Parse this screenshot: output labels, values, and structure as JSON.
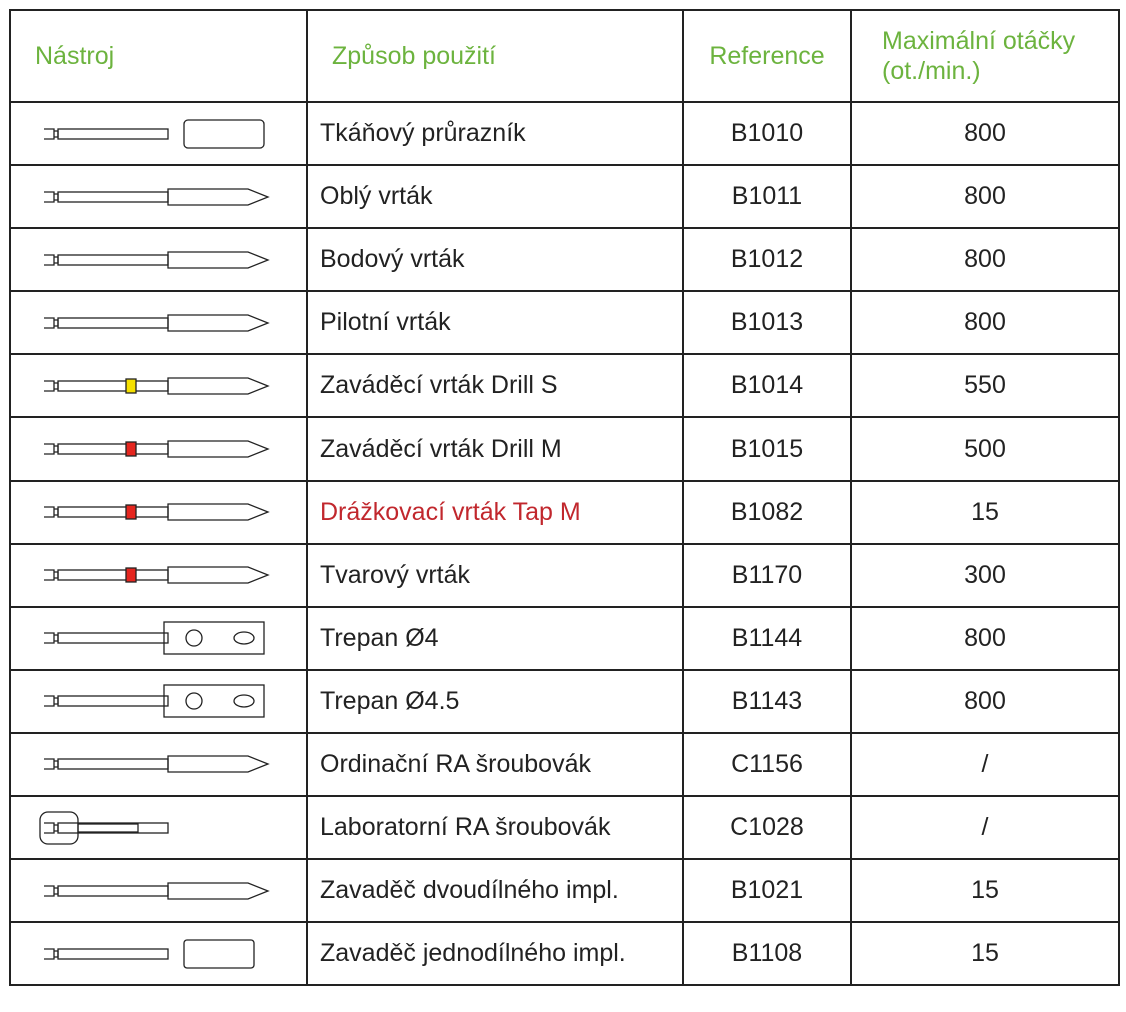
{
  "table": {
    "header": [
      "Nástroj",
      "Způsob použití",
      "Reference",
      "Maximální otáčky (ot./min.)"
    ],
    "header_color": "#6cb33e",
    "rows": [
      {
        "use": "Tkáňový průrazník",
        "reference": "B1010",
        "max_rpm": 800
      },
      {
        "use": "Oblý vrták",
        "reference": "B1011",
        "max_rpm": 800
      },
      {
        "use": "Bodový vrták",
        "reference": "B1012",
        "max_rpm": 800
      },
      {
        "use": "Pilotní vrták",
        "reference": "B1013",
        "max_rpm": 800
      },
      {
        "use": "Zaváděcí vrták Drill S",
        "reference": "B1014",
        "max_rpm": 550
      },
      {
        "use": "Zaváděcí vrták Drill M",
        "reference": "B1015",
        "max_rpm": 500
      },
      {
        "use": "Drážkovací vrták Tap M",
        "reference": "B1082",
        "max_rpm": 15,
        "color": "#c1272d"
      },
      {
        "use": "Tvarový vrták",
        "reference": "B1170",
        "max_rpm": 300
      },
      {
        "use": "Trepan Ø4",
        "reference": "B1144",
        "max_rpm": 800
      },
      {
        "use": "Trepan  Ø4.5",
        "reference": "B1143",
        "max_rpm": 800
      },
      {
        "use": "Ordinační RA šroubovák",
        "reference": "C1156",
        "max_rpm": "/"
      },
      {
        "use": "Laboratorní RA šroubovák",
        "reference": "C1028",
        "max_rpm": "/"
      },
      {
        "use": "Zavaděč dvoudílného impl.",
        "reference": "B1021",
        "max_rpm": 15
      },
      {
        "use": "Zavaděč jednodílného impl.",
        "reference": "B1108",
        "max_rpm": 15
      }
    ]
  }
}
